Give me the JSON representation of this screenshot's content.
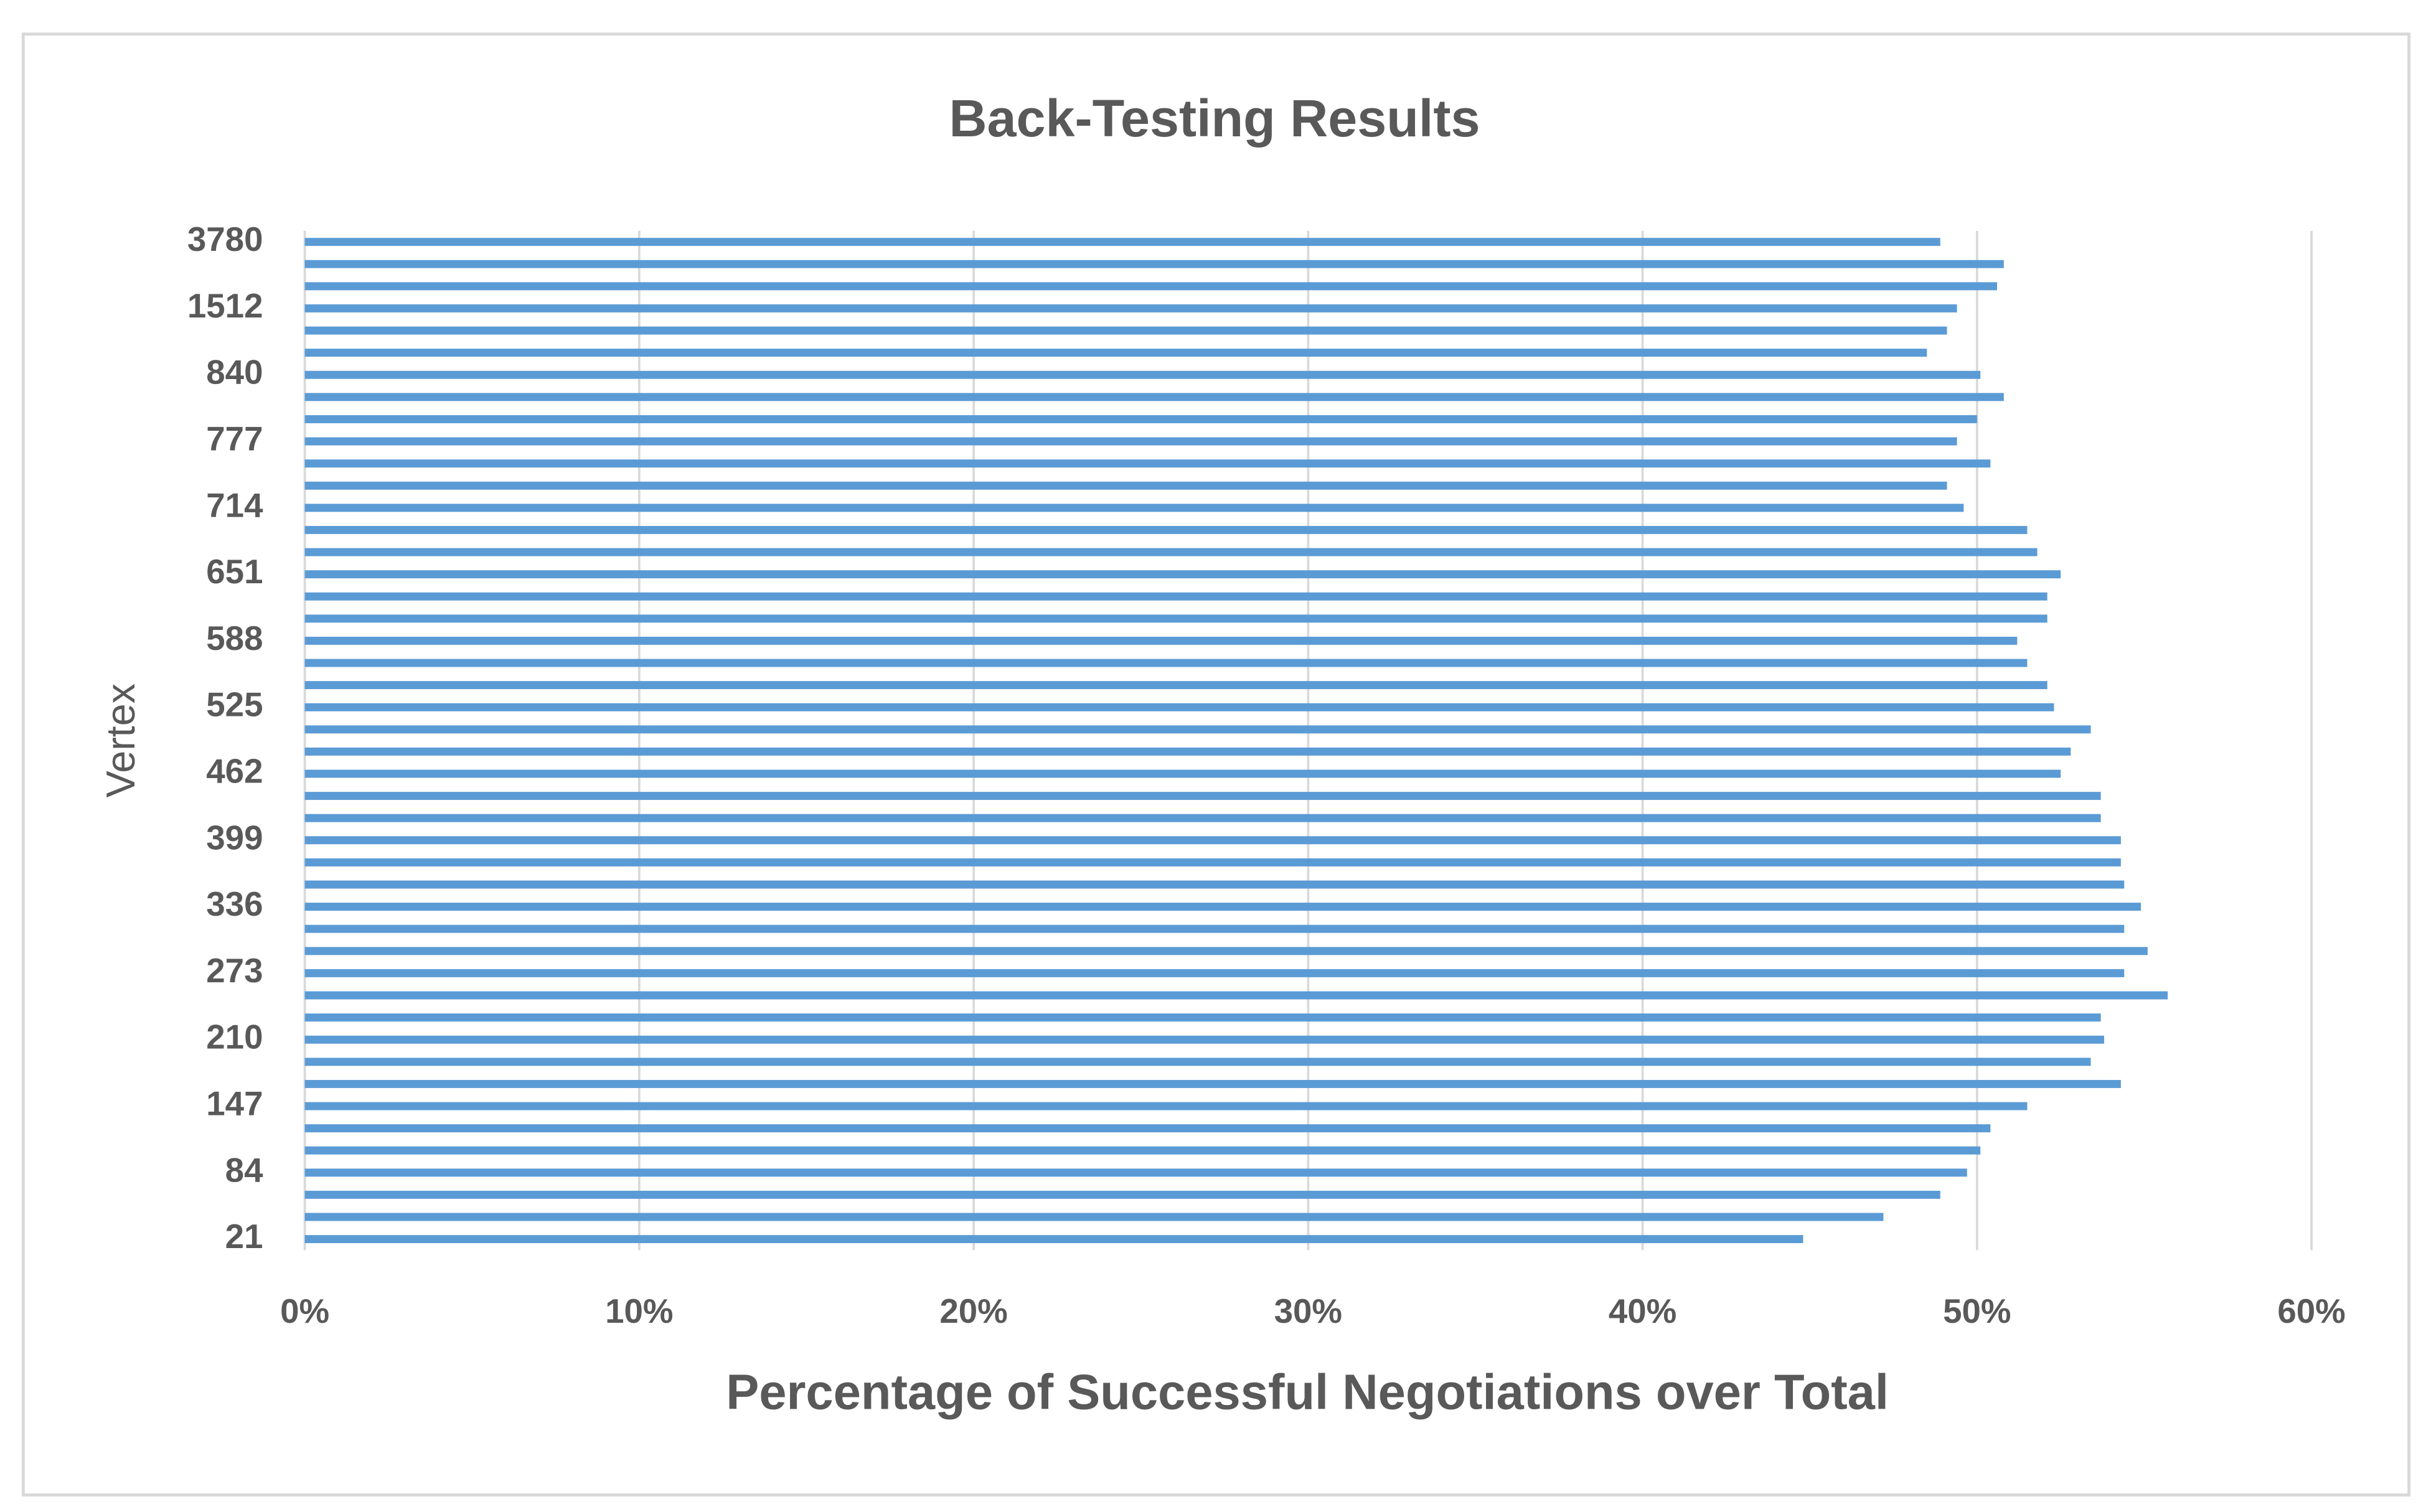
{
  "chart_data": {
    "type": "barh",
    "title": "Back-Testing Results",
    "x_label": "Percentage of Successful Negotiations over Total",
    "y_label": "Vertex",
    "categories": [
      "21",
      null,
      null,
      "84",
      null,
      null,
      "147",
      null,
      null,
      "210",
      null,
      null,
      "273",
      null,
      null,
      "336",
      null,
      null,
      "399",
      null,
      null,
      "462",
      null,
      null,
      "525",
      null,
      null,
      "588",
      null,
      null,
      "651",
      null,
      null,
      "714",
      null,
      null,
      "777",
      null,
      null,
      "840",
      null,
      null,
      "1512",
      null,
      null,
      "3780"
    ],
    "values": [
      44.8,
      47.2,
      48.9,
      49.7,
      50.1,
      50.4,
      51.5,
      54.3,
      53.4,
      53.8,
      53.7,
      55.7,
      54.4,
      55.1,
      54.4,
      54.9,
      54.4,
      54.3,
      54.3,
      53.7,
      53.7,
      52.5,
      52.8,
      53.4,
      52.3,
      52.1,
      51.5,
      51.2,
      52.1,
      52.1,
      52.5,
      51.8,
      51.5,
      49.6,
      49.1,
      50.4,
      49.4,
      50.0,
      50.8,
      50.1,
      48.5,
      49.1,
      49.4,
      50.6,
      50.8,
      48.9
    ],
    "color": "#5b9bd5",
    "xlim": [
      0,
      60
    ],
    "xticks": [
      {
        "value": 0,
        "label": "0%"
      },
      {
        "value": 10,
        "label": "10%"
      },
      {
        "value": 20,
        "label": "20%"
      },
      {
        "value": 30,
        "label": "30%"
      },
      {
        "value": 40,
        "label": "40%"
      },
      {
        "value": 50,
        "label": "50%"
      },
      {
        "value": 60,
        "label": "60%"
      }
    ],
    "grid": true
  }
}
